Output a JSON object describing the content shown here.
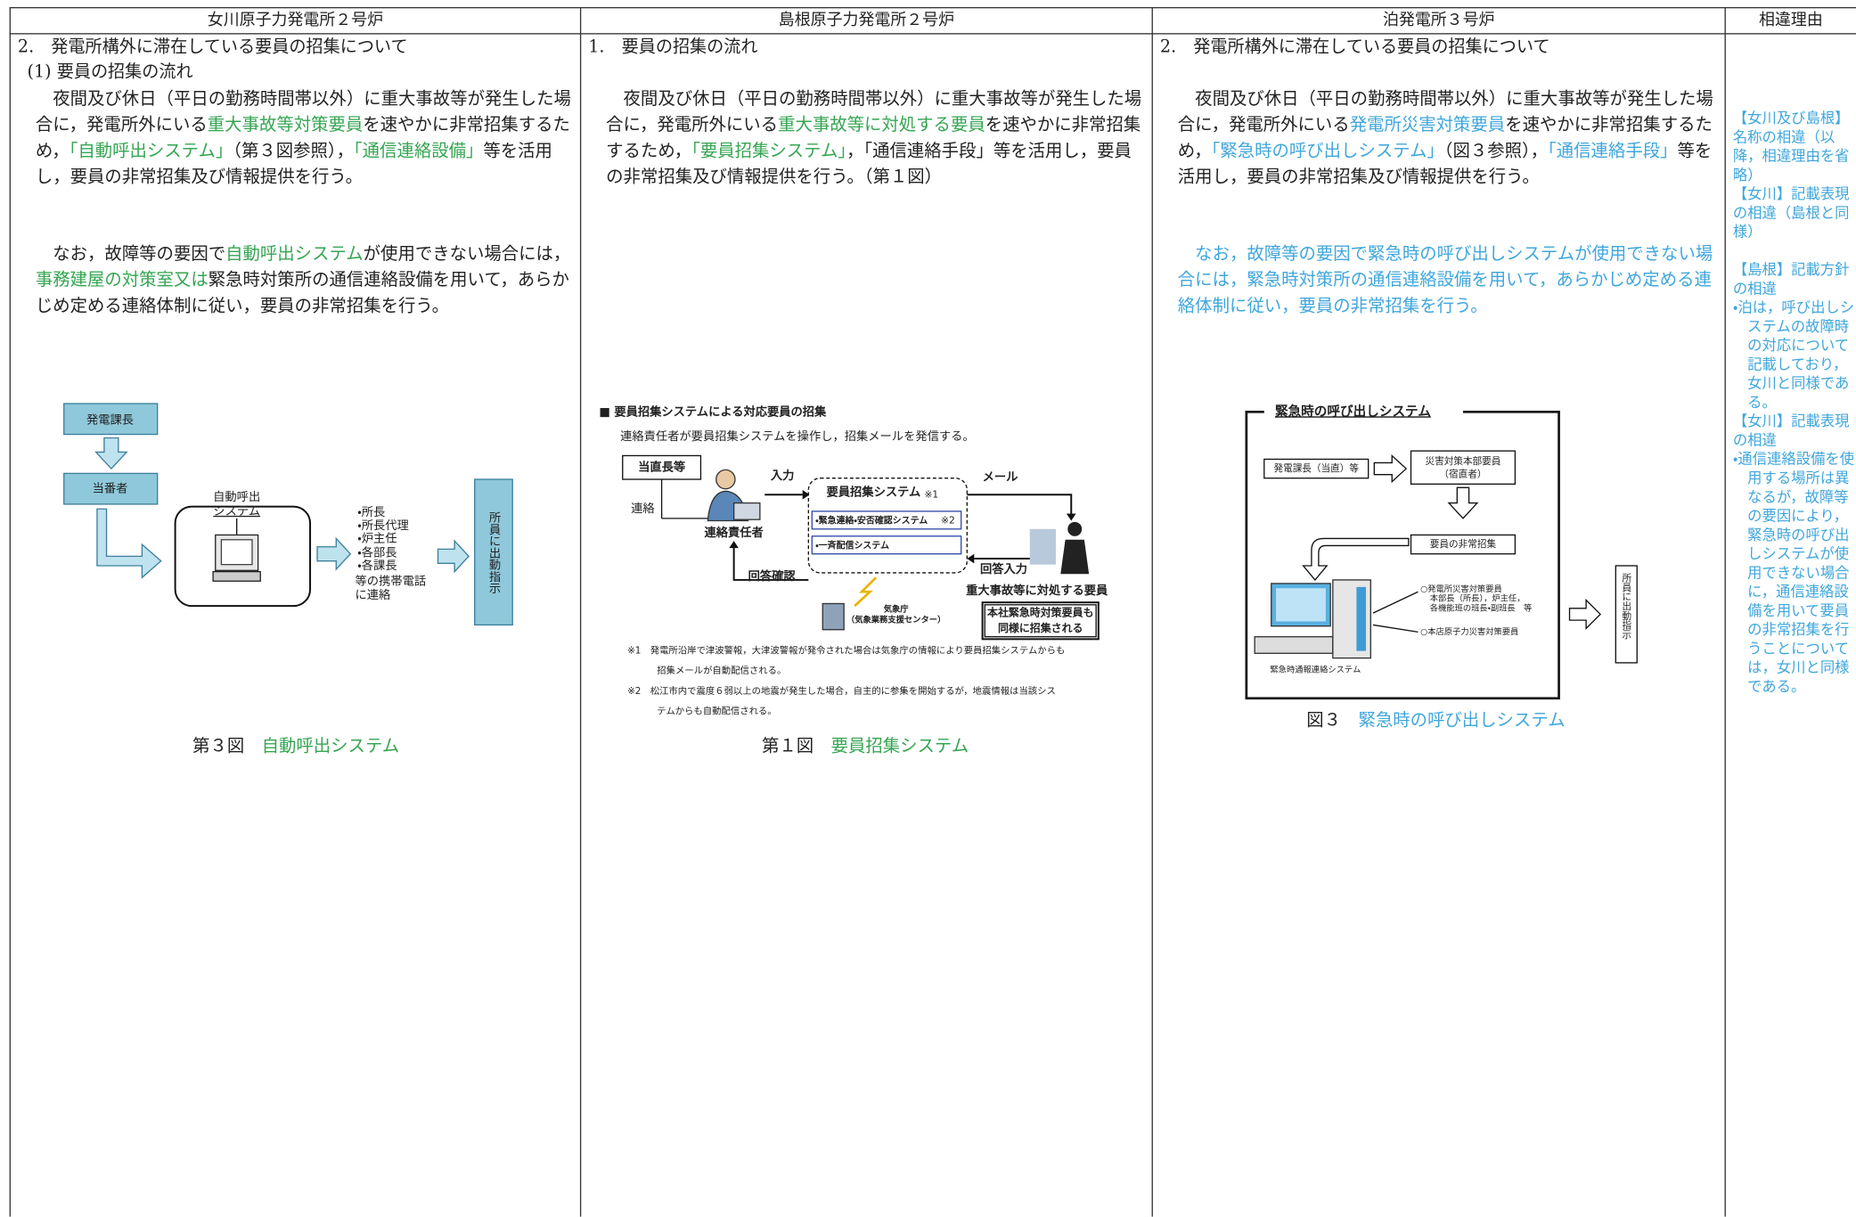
{
  "table": {
    "headers": [
      "女川原子力発電所２号炉",
      "島根原子力発電所２号炉",
      "泊発電所３号炉",
      "相違理由"
    ],
    "columns": [
      {
        "heading": "2.　発電所構外に滞在している要員の招集について",
        "subheading": "(1) 要員の招集の流れ",
        "paragraphs": [
          [
            {
              "text": "夜間及び休日（平日の勤務時間帯以外）に重大事故等が発生した場合に，発電所外にいる"
            },
            {
              "text": "重大事故等対策要員",
              "color": "#35a552"
            },
            {
              "text": "を速やかに非常招集するため，"
            },
            {
              "text": "「自動呼出システム」",
              "color": "#35a552"
            },
            {
              "text": "（第３図参照），"
            },
            {
              "text": "「通信連絡設備」",
              "color": "#35a552"
            },
            {
              "text": "等を活用し，要員の非常招集及び情報提供を行う。"
            }
          ],
          [
            {
              "text": "なお，故障等の要因で"
            },
            {
              "text": "自動呼出システム",
              "color": "#35a552"
            },
            {
              "text": "が使用できない場合には，"
            },
            {
              "text": "事務建屋の対策室又は",
              "color": "#35a552"
            },
            {
              "text": "緊急時対策所の通信連絡設備を用いて，あらかじめ定める連絡体制に従い，要員の非常招集を行う。"
            }
          ]
        ],
        "figure": {
          "labels": [
            "発電課長",
            "当番者",
            "自動呼出",
            "システム",
            "・所長",
            "・所長代理",
            "・炉主任",
            "・各部長",
            "・各課長",
            "等の携帯電話",
            "に連絡",
            "所員に出動指示"
          ]
        },
        "caption": [
          {
            "text": "第３図　"
          },
          {
            "text": "自動呼出システム",
            "color": "#35a552"
          }
        ]
      },
      {
        "heading": "1.　要員の招集の流れ",
        "paragraphs": [
          [
            {
              "text": "夜間及び休日（平日の勤務時間帯以外）に重大事故等が発生した場合に，発電所外にいる"
            },
            {
              "text": "重大事故等に対処する要員",
              "color": "#35a552"
            },
            {
              "text": "を速やかに非常招集するため，"
            },
            {
              "text": "「要員招集システム」",
              "color": "#35a552"
            },
            {
              "text": "，「通信連絡手段」等を活用し，要員の非常招集及び情報提供を行う。（第１図）"
            }
          ]
        ],
        "figure": {
          "labels": [
            "■ 要員招集システムによる対応要員の招集",
            "連絡責任者が要員招集システムを操作し，招集メールを発信する。",
            "当直長等",
            "連絡",
            "入力",
            "連絡責任者",
            "要員招集システム",
            "※1",
            "・緊急連絡・安否確認システム",
            "※2",
            "・一斉配信システム",
            "メール",
            "回答確認",
            "回答入力",
            "重大事故等に対処する要員",
            "気象庁",
            "（気象業務支援センター）",
            "本社緊急時対策要員も",
            "同様に招集される",
            "※1　発電所沿岸で津波警報，大津波警報が発令された場合は気象庁の情報により要員招集システムからも",
            "招集メールが自動配信される。",
            "※2　松江市内で震度６弱以上の地震が発生した場合，自主的に参集を開始するが，地震情報は当該シス",
            "テムからも自動配信される。"
          ]
        },
        "caption": [
          {
            "text": "第１図　"
          },
          {
            "text": "要員招集システム",
            "color": "#35a552"
          }
        ]
      },
      {
        "heading": "2.　発電所構外に滞在している要員の招集について",
        "paragraphs": [
          [
            {
              "text": "夜間及び休日（平日の勤務時間帯以外）に重大事故等が発生した場合に，発電所外にいる"
            },
            {
              "text": "発電所災害対策要員",
              "color": "#3fa6dc"
            },
            {
              "text": "を速やかに非常招集するため，"
            },
            {
              "text": "「緊急時の呼び出しシステム」",
              "color": "#3fa6dc"
            },
            {
              "text": "（図３参照），"
            },
            {
              "text": "「通信連絡手段」",
              "color": "#3fa6dc"
            },
            {
              "text": "等を活用し，要員の非常招集及び情報提供を行う。"
            }
          ],
          [
            {
              "text": "なお，故障等の要因で緊急時の呼び出しシステムが使用できない場合には，緊急時対策所の通信連絡設備を用いて，あらかじめ定める連絡体制に従い，要員の非常招集を行う。",
              "color": "#3fa6dc"
            }
          ]
        ],
        "figure": {
          "labels": [
            "緊急時の呼び出しシステム",
            "発電課長（当直）等",
            "災害対策本部要員",
            "（宿直者）",
            "要員の非常招集",
            "○発電所災害対策要員",
            "本部長（所長），炉主任，",
            "各機能班の班長・副班長　等",
            "○本店原子力災害対策要員",
            "緊急時通報連絡システム",
            "所員に出動指示"
          ]
        },
        "caption": [
          {
            "text": "図３　"
          },
          {
            "text": "緊急時の呼び出しシステム",
            "color": "#3fa6dc"
          }
        ]
      },
      {
        "paragraphs": [
          [
            {
              "text": "【女川及び島根】名称の相違（以降，相違理由を省略）",
              "color": "#3fa6dc"
            }
          ],
          [
            {
              "text": "【女川】記載表現の相違（島根と同様）",
              "color": "#3fa6dc"
            }
          ],
          [
            {
              "text": "【島根】記載方針の相違",
              "color": "#3fa6dc"
            }
          ],
          [
            {
              "text": "・泊は，呼び出しシステムの故障時の対応について記載しており，女川と同様である。",
              "color": "#3fa6dc"
            }
          ],
          [
            {
              "text": "【女川】記載表現の相違",
              "color": "#3fa6dc"
            }
          ],
          [
            {
              "text": "・通信連絡設備を使用する場所は異なるが，故障等の要因により，緊急時の呼び出しシステムが使用できない場合に，通信連絡設備を用いて要員の非常招集を行うことについては，女川と同様である。",
              "color": "#3fa6dc"
            }
          ]
        ]
      }
    ]
  }
}
